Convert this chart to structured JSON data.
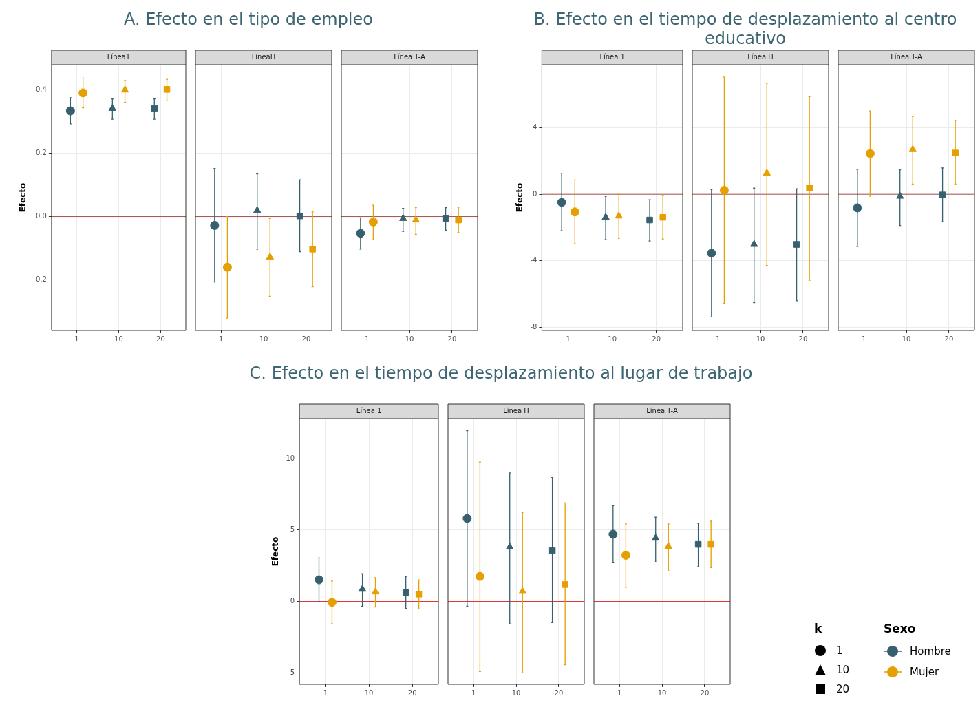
{
  "chart_data": [
    {
      "type": "scatter",
      "title": "A. Efecto en el tipo de empleo",
      "subtitle": "Línea1",
      "ylabel": "Efecto",
      "categories": [
        "1",
        "10",
        "20"
      ],
      "series": [
        {
          "color": "#36606e",
          "values": [
            0.334,
            0.342,
            0.342
          ],
          "errors": [
            [
              0.293,
              0.376
            ],
            [
              0.308,
              0.372
            ],
            [
              0.308,
              0.372
            ]
          ]
        },
        {
          "color": "#e69f00",
          "values": [
            0.391,
            0.4,
            0.402
          ],
          "errors": [
            [
              0.344,
              0.438
            ],
            [
              0.361,
              0.43
            ],
            [
              0.366,
              0.434
            ]
          ]
        }
      ],
      "ylim": [
        -0.36,
        0.48
      ],
      "yticks": [
        -0.2,
        {
          "value": 0,
          "label": "0.0"
        },
        0.2,
        0.4
      ],
      "grid": true,
      "ref_lines": [
        {
          "axis": "y",
          "value": 0,
          "color": "#a0524e"
        }
      ]
    },
    {
      "type": "scatter",
      "subtitle": "LíneaH",
      "categories": [
        "1",
        "10",
        "20"
      ],
      "series": [
        {
          "color": "#36606e",
          "values": [
            -0.028,
            0.019,
            0.002
          ],
          "errors": [
            [
              -0.207,
              0.152
            ],
            [
              -0.103,
              0.135
            ],
            [
              -0.111,
              0.116
            ]
          ]
        },
        {
          "color": "#e69f00",
          "values": [
            -0.16,
            -0.128,
            -0.103
          ],
          "errors": [
            [
              -0.321,
              0.0
            ],
            [
              -0.252,
              -0.006
            ],
            [
              -0.222,
              0.015
            ]
          ]
        }
      ],
      "ylim": [
        -0.36,
        0.48
      ],
      "yticks": [
        -0.2,
        0,
        0.2,
        0.4
      ],
      "grid": true,
      "tick_labels": "x",
      "ref_lines": [
        {
          "axis": "y",
          "value": 0,
          "color": "#a0524e"
        }
      ]
    },
    {
      "type": "scatter",
      "subtitle": "Línea T-A",
      "categories": [
        "1",
        "10",
        "20"
      ],
      "series": [
        {
          "color": "#36606e",
          "values": [
            -0.053,
            -0.006,
            -0.006
          ],
          "errors": [
            [
              -0.103,
              -0.004
            ],
            [
              -0.047,
              0.026
            ],
            [
              -0.043,
              0.028
            ]
          ]
        },
        {
          "color": "#e69f00",
          "values": [
            -0.017,
            -0.011,
            -0.011
          ],
          "errors": [
            [
              -0.073,
              0.036
            ],
            [
              -0.056,
              0.028
            ],
            [
              -0.051,
              0.03
            ]
          ]
        }
      ],
      "ylim": [
        -0.36,
        0.48
      ],
      "yticks": [
        -0.2,
        0,
        0.2,
        0.4
      ],
      "grid": true,
      "tick_labels": "x",
      "ref_lines": [
        {
          "axis": "y",
          "value": 0,
          "color": "#a0524e"
        }
      ]
    },
    {
      "type": "scatter",
      "title": "B. Efecto en el tiempo de desplazamiento al centro educativo",
      "subtitle": "Línea 1",
      "ylabel": "Efecto",
      "categories": [
        "1",
        "10",
        "20"
      ],
      "series": [
        {
          "color": "#36606e",
          "values": [
            -0.49,
            -1.39,
            -1.55
          ],
          "errors": [
            [
              -2.2,
              1.27
            ],
            [
              -2.73,
              -0.12
            ],
            [
              -2.82,
              -0.33
            ]
          ]
        },
        {
          "color": "#e69f00",
          "values": [
            -1.06,
            -1.31,
            -1.39
          ],
          "errors": [
            [
              -2.98,
              0.86
            ],
            [
              -2.65,
              0
            ],
            [
              -2.69,
              -0.04
            ]
          ]
        }
      ],
      "ylim": [
        -8.2,
        7.8
      ],
      "yticks": [
        -8,
        -4,
        0,
        4
      ],
      "grid": true,
      "ref_lines": [
        {
          "axis": "y",
          "value": 0,
          "color": "#a0524e"
        }
      ]
    },
    {
      "type": "scatter",
      "subtitle": "Línea H",
      "categories": [
        "1",
        "10",
        "20"
      ],
      "series": [
        {
          "color": "#36606e",
          "values": [
            -3.55,
            -3.02,
            -3.02
          ],
          "errors": [
            [
              -7.39,
              0.29
            ],
            [
              -6.53,
              0.37
            ],
            [
              -6.41,
              0.33
            ]
          ]
        },
        {
          "color": "#e69f00",
          "values": [
            0.24,
            1.27,
            0.37
          ],
          "errors": [
            [
              -6.57,
              7.06
            ],
            [
              -4.29,
              6.69
            ],
            [
              -5.18,
              5.88
            ]
          ]
        }
      ],
      "ylim": [
        -8.2,
        7.8
      ],
      "yticks": [
        -8,
        -4,
        0,
        4
      ],
      "grid": true,
      "tick_labels": "x",
      "ref_lines": [
        {
          "axis": "y",
          "value": 0,
          "color": "#a0524e"
        }
      ]
    },
    {
      "type": "scatter",
      "subtitle": "Línea T-A",
      "categories": [
        "1",
        "10",
        "20"
      ],
      "series": [
        {
          "color": "#36606e",
          "values": [
            -0.82,
            -0.12,
            -0.04
          ],
          "errors": [
            [
              -3.14,
              1.51
            ],
            [
              -1.88,
              1.47
            ],
            [
              -1.67,
              1.59
            ]
          ]
        },
        {
          "color": "#e69f00",
          "values": [
            2.45,
            2.69,
            2.49
          ],
          "errors": [
            [
              -0.12,
              5.02
            ],
            [
              0.61,
              4.69
            ],
            [
              0.61,
              4.45
            ]
          ]
        }
      ],
      "ylim": [
        -8.2,
        7.8
      ],
      "yticks": [
        -8,
        -4,
        0,
        4
      ],
      "grid": true,
      "tick_labels": "x",
      "ref_lines": [
        {
          "axis": "y",
          "value": 0,
          "color": "#a0524e"
        }
      ]
    },
    {
      "type": "scatter",
      "title": "C. Efecto en el tiempo de desplazamiento al lugar de trabajo",
      "subtitle": "Línea 1",
      "ylabel": "Efecto",
      "categories": [
        "1",
        "10",
        "20"
      ],
      "series": [
        {
          "color": "#36606e",
          "values": [
            1.52,
            0.86,
            0.62
          ],
          "errors": [
            [
              0,
              3.05
            ],
            [
              -0.33,
              1.95
            ],
            [
              -0.48,
              1.76
            ]
          ]
        },
        {
          "color": "#e69f00",
          "values": [
            -0.05,
            0.67,
            0.52
          ],
          "errors": [
            [
              -1.57,
              1.43
            ],
            [
              -0.38,
              1.67
            ],
            [
              -0.52,
              1.52
            ]
          ]
        }
      ],
      "ylim": [
        -5.8,
        12.8
      ],
      "yticks": [
        -5,
        0,
        5,
        10
      ],
      "grid": true,
      "ref_lines": [
        {
          "axis": "y",
          "value": 0,
          "color": "#e41a1c"
        }
      ]
    },
    {
      "type": "scatter",
      "subtitle": "Línea H",
      "categories": [
        "1",
        "10",
        "20"
      ],
      "series": [
        {
          "color": "#36606e",
          "values": [
            5.81,
            3.81,
            3.57
          ],
          "errors": [
            [
              -0.33,
              11.95
            ],
            [
              -1.57,
              9.0
            ],
            [
              -1.48,
              8.67
            ]
          ]
        },
        {
          "color": "#e69f00",
          "values": [
            1.76,
            0.71,
            1.19
          ],
          "errors": [
            [
              -4.9,
              9.76
            ],
            [
              -5.0,
              6.24
            ],
            [
              -4.43,
              6.9
            ]
          ]
        }
      ],
      "ylim": [
        -5.8,
        12.8
      ],
      "yticks": [
        -5,
        0,
        5,
        10
      ],
      "grid": true,
      "tick_labels": "x",
      "ref_lines": [
        {
          "axis": "y",
          "value": 0,
          "color": "#e41a1c"
        }
      ]
    },
    {
      "type": "scatter",
      "subtitle": "Línea T-A",
      "categories": [
        "1",
        "10",
        "20"
      ],
      "series": [
        {
          "name": "Hombre",
          "color": "#36606e",
          "values": [
            4.71,
            4.43,
            4.0
          ],
          "errors": [
            [
              2.71,
              6.71
            ],
            [
              2.76,
              5.9
            ],
            [
              2.43,
              5.48
            ]
          ]
        },
        {
          "name": "Mujer",
          "color": "#e69f00",
          "values": [
            3.24,
            3.86,
            4.0
          ],
          "errors": [
            [
              1.0,
              5.43
            ],
            [
              2.14,
              5.43
            ],
            [
              2.38,
              5.62
            ]
          ]
        }
      ],
      "ylim": [
        -5.8,
        12.8
      ],
      "yticks": [
        -5,
        0,
        5,
        10
      ],
      "grid": true,
      "tick_labels": "x",
      "ref_lines": [
        {
          "axis": "y",
          "value": 0,
          "color": "#e41a1c"
        }
      ],
      "legend": "bottom right",
      "legend_title": "Sexo",
      "annotations": [
        "k"
      ]
    }
  ]
}
